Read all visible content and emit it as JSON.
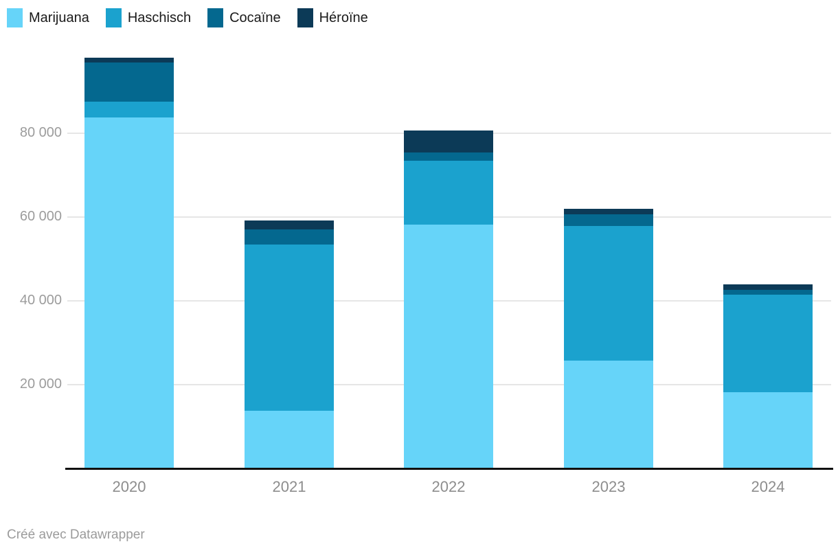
{
  "footer": {
    "credit": "Créé avec Datawrapper"
  },
  "chart_data": {
    "type": "bar",
    "stacked": true,
    "title": "",
    "xlabel": "",
    "ylabel": "",
    "grid": true,
    "legend_position": "top",
    "categories": [
      "2020",
      "2021",
      "2022",
      "2023",
      "2024"
    ],
    "series": [
      {
        "name": "Marijuana",
        "color": "#66d4f9",
        "values": [
          83800,
          13800,
          58200,
          25800,
          18200
        ]
      },
      {
        "name": "Haschisch",
        "color": "#1ba2ce",
        "values": [
          3750,
          39600,
          15200,
          32100,
          23300
        ]
      },
      {
        "name": "Cocaïne",
        "color": "#04688f",
        "values": [
          9300,
          3600,
          2000,
          2700,
          1200
        ]
      },
      {
        "name": "Héroïne",
        "color": "#0c3a57",
        "values": [
          1150,
          2100,
          5200,
          1300,
          1200
        ]
      }
    ],
    "totals": [
      98000,
      59100,
      80600,
      61900,
      43900
    ],
    "ylim": [
      0,
      100000
    ],
    "yticks": [
      20000,
      40000,
      60000,
      80000
    ],
    "ytick_labels": [
      "20 000",
      "40 000",
      "60 000",
      "80 000"
    ]
  }
}
